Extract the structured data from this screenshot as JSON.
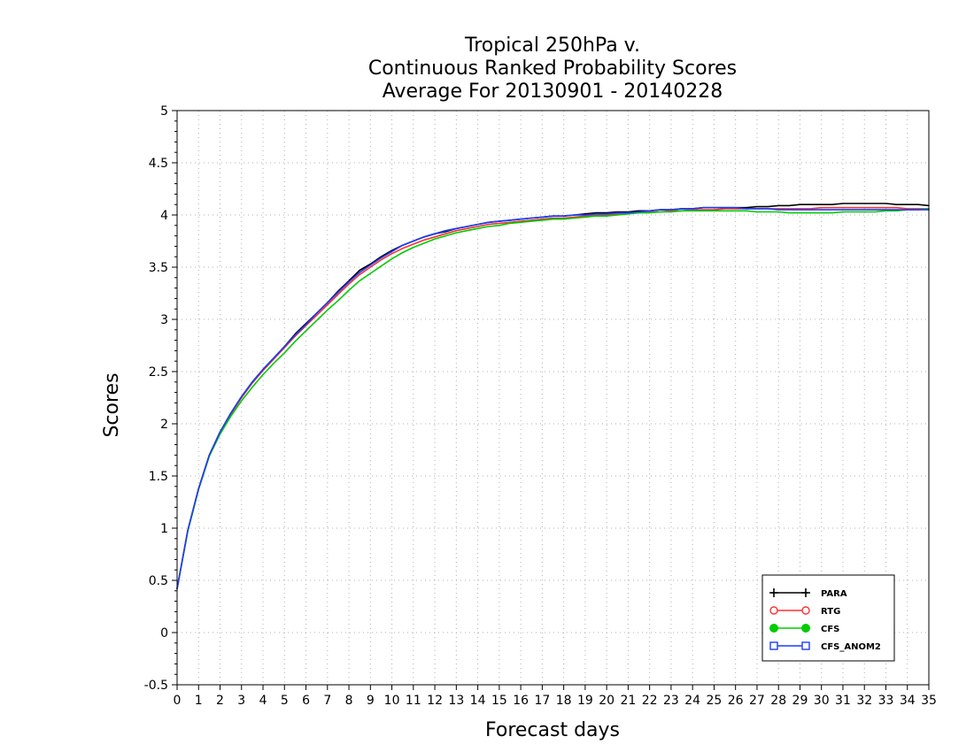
{
  "chart_data": {
    "type": "line",
    "title": [
      "Tropical 250hPa v.",
      "Continuous Ranked Probability Scores",
      "Average For 20130901 - 20140228"
    ],
    "xlabel": "Forecast days",
    "ylabel": "Scores",
    "xlim": [
      0,
      35
    ],
    "ylim": [
      -0.5,
      5
    ],
    "xticks": [
      0,
      1,
      2,
      3,
      4,
      5,
      6,
      7,
      8,
      9,
      10,
      11,
      12,
      13,
      14,
      15,
      16,
      17,
      18,
      19,
      20,
      21,
      22,
      23,
      24,
      25,
      26,
      27,
      28,
      29,
      30,
      31,
      32,
      33,
      34,
      35
    ],
    "yticks": [
      -0.5,
      0,
      0.5,
      1,
      1.5,
      2,
      2.5,
      3,
      3.5,
      4,
      4.5,
      5
    ],
    "ytick_labels": [
      "-0.5",
      "0",
      "0.5",
      "1",
      "1.5",
      "2",
      "2.5",
      "3",
      "3.5",
      "4",
      "4.5",
      "5"
    ],
    "grid": true,
    "legend_position": "bottom-right",
    "x": [
      0,
      0.5,
      1,
      1.5,
      2,
      2.5,
      3,
      3.5,
      4,
      4.5,
      5,
      5.5,
      6,
      6.5,
      7,
      7.5,
      8,
      8.5,
      9,
      9.5,
      10,
      10.5,
      11,
      11.5,
      12,
      12.5,
      13,
      13.5,
      14,
      14.5,
      15,
      15.5,
      16,
      16.5,
      17,
      17.5,
      18,
      18.5,
      19,
      19.5,
      20,
      20.5,
      21,
      21.5,
      22,
      22.5,
      23,
      23.5,
      24,
      24.5,
      25,
      25.5,
      26,
      26.5,
      27,
      27.5,
      28,
      28.5,
      29,
      29.5,
      30,
      30.5,
      31,
      31.5,
      32,
      32.5,
      33,
      33.5,
      34,
      34.5,
      35
    ],
    "series": [
      {
        "name": "PARA",
        "color": "#000000",
        "marker": "plus",
        "values": [
          0.42,
          0.98,
          1.38,
          1.7,
          1.92,
          2.1,
          2.26,
          2.4,
          2.52,
          2.63,
          2.74,
          2.86,
          2.96,
          3.06,
          3.16,
          3.27,
          3.37,
          3.47,
          3.53,
          3.6,
          3.66,
          3.71,
          3.75,
          3.79,
          3.82,
          3.84,
          3.87,
          3.89,
          3.91,
          3.93,
          3.94,
          3.95,
          3.96,
          3.97,
          3.98,
          3.99,
          3.99,
          4.0,
          4.01,
          4.02,
          4.02,
          4.03,
          4.03,
          4.04,
          4.04,
          4.05,
          4.05,
          4.06,
          4.06,
          4.07,
          4.07,
          4.07,
          4.07,
          4.07,
          4.08,
          4.08,
          4.09,
          4.09,
          4.1,
          4.1,
          4.1,
          4.1,
          4.11,
          4.11,
          4.11,
          4.11,
          4.11,
          4.1,
          4.1,
          4.1,
          4.09
        ]
      },
      {
        "name": "RTG",
        "color": "#ff3030",
        "marker": "open-circle",
        "values": [
          0.42,
          0.98,
          1.38,
          1.7,
          1.92,
          2.09,
          2.25,
          2.39,
          2.51,
          2.62,
          2.73,
          2.84,
          2.94,
          3.04,
          3.14,
          3.24,
          3.34,
          3.43,
          3.5,
          3.57,
          3.63,
          3.68,
          3.72,
          3.76,
          3.79,
          3.82,
          3.85,
          3.87,
          3.89,
          3.91,
          3.92,
          3.93,
          3.94,
          3.95,
          3.96,
          3.97,
          3.97,
          3.98,
          3.99,
          4.0,
          4.0,
          4.01,
          4.02,
          4.02,
          4.03,
          4.03,
          4.04,
          4.04,
          4.05,
          4.05,
          4.05,
          4.06,
          4.06,
          4.06,
          4.06,
          4.06,
          4.06,
          4.06,
          4.06,
          4.06,
          4.07,
          4.07,
          4.07,
          4.07,
          4.07,
          4.07,
          4.07,
          4.07,
          4.06,
          4.06,
          4.06
        ]
      },
      {
        "name": "CFS",
        "color": "#00cc00",
        "marker": "filled-circle",
        "values": [
          0.42,
          0.97,
          1.37,
          1.69,
          1.9,
          2.07,
          2.22,
          2.35,
          2.47,
          2.58,
          2.68,
          2.79,
          2.89,
          2.99,
          3.09,
          3.18,
          3.28,
          3.37,
          3.44,
          3.51,
          3.58,
          3.64,
          3.69,
          3.73,
          3.77,
          3.8,
          3.83,
          3.85,
          3.87,
          3.89,
          3.9,
          3.92,
          3.93,
          3.94,
          3.95,
          3.96,
          3.96,
          3.97,
          3.98,
          3.99,
          3.99,
          4.0,
          4.01,
          4.02,
          4.02,
          4.03,
          4.03,
          4.04,
          4.04,
          4.04,
          4.04,
          4.04,
          4.04,
          4.04,
          4.03,
          4.03,
          4.03,
          4.02,
          4.02,
          4.02,
          4.02,
          4.02,
          4.03,
          4.03,
          4.03,
          4.03,
          4.04,
          4.04,
          4.05,
          4.05,
          4.06
        ]
      },
      {
        "name": "CFS_ANOM2",
        "color": "#1c3cff",
        "marker": "open-square",
        "values": [
          0.42,
          0.98,
          1.38,
          1.7,
          1.92,
          2.1,
          2.26,
          2.4,
          2.52,
          2.63,
          2.74,
          2.85,
          2.95,
          3.06,
          3.16,
          3.26,
          3.36,
          3.45,
          3.52,
          3.59,
          3.65,
          3.71,
          3.75,
          3.79,
          3.82,
          3.85,
          3.87,
          3.89,
          3.91,
          3.93,
          3.94,
          3.95,
          3.96,
          3.97,
          3.98,
          3.99,
          3.99,
          4.0,
          4.0,
          4.01,
          4.01,
          4.02,
          4.02,
          4.03,
          4.04,
          4.05,
          4.05,
          4.06,
          4.06,
          4.07,
          4.07,
          4.07,
          4.07,
          4.06,
          4.06,
          4.06,
          4.05,
          4.05,
          4.05,
          4.05,
          4.05,
          4.05,
          4.05,
          4.05,
          4.05,
          4.05,
          4.05,
          4.05,
          4.05,
          4.05,
          4.05
        ]
      }
    ]
  }
}
